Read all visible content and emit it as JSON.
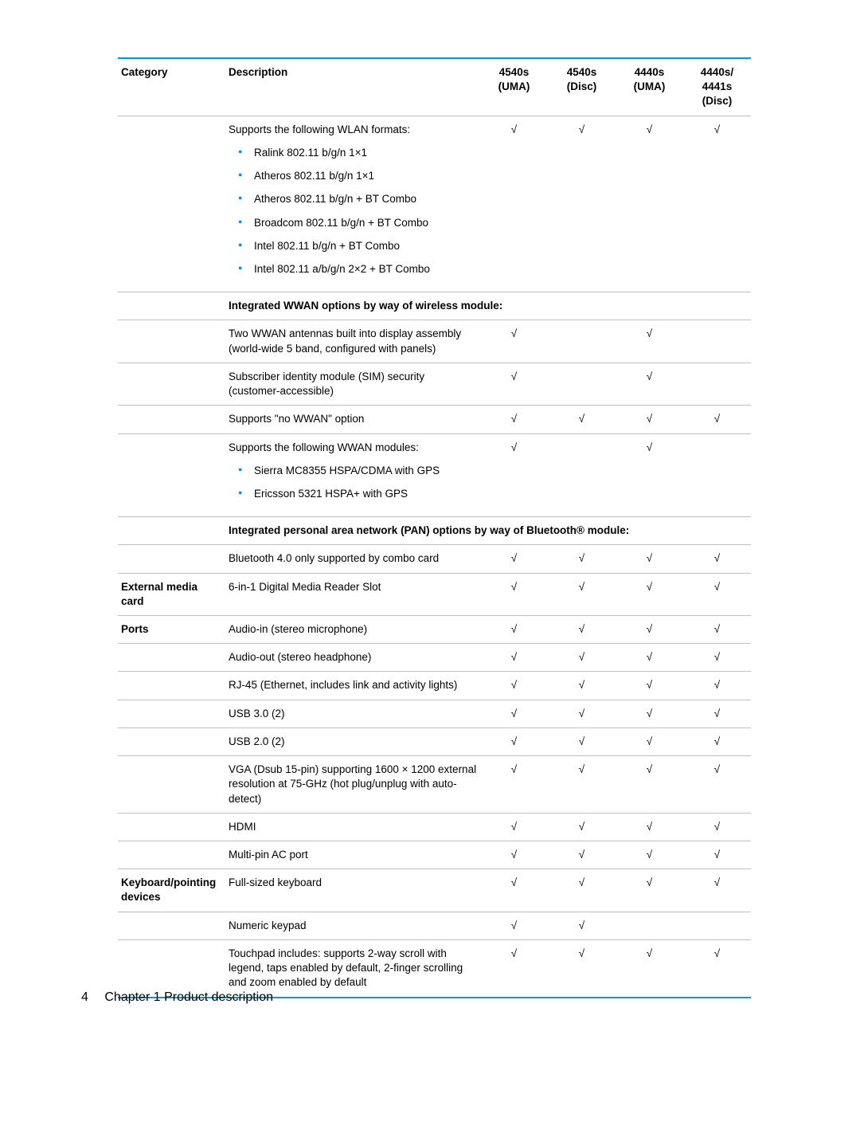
{
  "colors": {
    "accent": "#0096d6",
    "rule": "#bfbfbf",
    "text": "#000000",
    "background": "#ffffff"
  },
  "check_glyph": "√",
  "header": {
    "category": "Category",
    "description": "Description",
    "cols": [
      "4540s (UMA)",
      "4540s (Disc)",
      "4440s (UMA)",
      "4440s/ 4441s (Disc)"
    ]
  },
  "rows": [
    {
      "id": "wlan-formats",
      "category": "",
      "description": "Supports the following WLAN formats:",
      "bullets": [
        "Ralink 802.11 b/g/n 1×1",
        "Atheros 802.11 b/g/n 1×1",
        "Atheros 802.11 b/g/n + BT Combo",
        "Broadcom 802.11 b/g/n + BT Combo",
        "Intel 802.11 b/g/n + BT Combo",
        "Intel 802.11 a/b/g/n 2×2 + BT Combo"
      ],
      "checks": [
        true,
        true,
        true,
        true
      ]
    },
    {
      "id": "wwan-section",
      "section": "Integrated WWAN options by way of wireless module:"
    },
    {
      "id": "wwan-antennas",
      "category": "",
      "description": "Two WWAN antennas built into display assembly (world-wide 5 band, configured with panels)",
      "checks": [
        true,
        false,
        true,
        false
      ]
    },
    {
      "id": "sim",
      "category": "",
      "description": "Subscriber identity module (SIM) security (customer-accessible)",
      "checks": [
        true,
        false,
        true,
        false
      ]
    },
    {
      "id": "no-wwan",
      "category": "",
      "description": "Supports \"no WWAN\" option",
      "checks": [
        true,
        true,
        true,
        true
      ]
    },
    {
      "id": "wwan-modules",
      "category": "",
      "description": "Supports the following WWAN modules:",
      "bullets": [
        "Sierra MC8355 HSPA/CDMA with GPS",
        "Ericsson 5321 HSPA+ with GPS"
      ],
      "checks": [
        true,
        false,
        true,
        false
      ]
    },
    {
      "id": "pan-section",
      "section": "Integrated personal area network (PAN) options by way of Bluetooth® module:"
    },
    {
      "id": "bt40",
      "category": "",
      "description": "Bluetooth 4.0 only supported by combo card",
      "checks": [
        true,
        true,
        true,
        true
      ]
    },
    {
      "id": "media-reader",
      "category": "External media card",
      "description": "6-in-1 Digital Media Reader Slot",
      "checks": [
        true,
        true,
        true,
        true
      ]
    },
    {
      "id": "audio-in",
      "category": "Ports",
      "description": "Audio-in (stereo microphone)",
      "checks": [
        true,
        true,
        true,
        true
      ]
    },
    {
      "id": "audio-out",
      "category": "",
      "description": "Audio-out (stereo headphone)",
      "checks": [
        true,
        true,
        true,
        true
      ]
    },
    {
      "id": "rj45",
      "category": "",
      "description": "RJ-45 (Ethernet, includes link and activity lights)",
      "checks": [
        true,
        true,
        true,
        true
      ]
    },
    {
      "id": "usb30",
      "category": "",
      "description": "USB 3.0 (2)",
      "checks": [
        true,
        true,
        true,
        true
      ]
    },
    {
      "id": "usb20",
      "category": "",
      "description": "USB 2.0 (2)",
      "checks": [
        true,
        true,
        true,
        true
      ]
    },
    {
      "id": "vga",
      "category": "",
      "description": "VGA (Dsub 15-pin) supporting 1600 × 1200 external resolution at 75-GHz (hot plug/unplug with auto-detect)",
      "checks": [
        true,
        true,
        true,
        true
      ]
    },
    {
      "id": "hdmi",
      "category": "",
      "description": "HDMI",
      "checks": [
        true,
        true,
        true,
        true
      ]
    },
    {
      "id": "ac-port",
      "category": "",
      "description": "Multi-pin AC port",
      "checks": [
        true,
        true,
        true,
        true
      ]
    },
    {
      "id": "keyboard",
      "category": "Keyboard/pointing devices",
      "description": "Full-sized keyboard",
      "checks": [
        true,
        true,
        true,
        true
      ]
    },
    {
      "id": "numpad",
      "category": "",
      "description": "Numeric keypad",
      "checks": [
        true,
        true,
        false,
        false
      ]
    },
    {
      "id": "touchpad",
      "category": "",
      "description": "Touchpad includes: supports 2-way scroll with legend, taps enabled by default, 2-finger scrolling and zoom enabled by default",
      "checks": [
        true,
        true,
        true,
        true
      ],
      "last": true
    }
  ],
  "footer": {
    "page_number": "4",
    "chapter": "Chapter 1   Product description"
  }
}
